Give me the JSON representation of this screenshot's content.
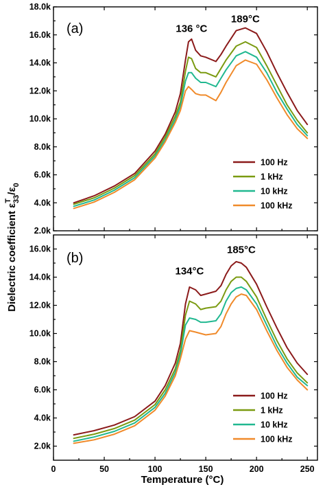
{
  "figure": {
    "ylabel_main": "Dielectric coefficient ε",
    "ylabel_sup": "T",
    "ylabel_sub": "33",
    "ylabel_tail": "/ε",
    "ylabel_sub0": "0",
    "xlabel": "Temperature (°C)"
  },
  "colors": {
    "100 Hz": "#8b1a1a",
    "1 kHz": "#7a9a10",
    "10 kHz": "#20b890",
    "100 kHz": "#f08a2a"
  },
  "chart_data": [
    {
      "type": "line",
      "panel_label": "(a)",
      "xlabel": "",
      "ylabel": "Dielectric coefficient ε33T/ε0",
      "xlim": [
        0,
        260
      ],
      "ylim": [
        2000,
        18000
      ],
      "xticks": [
        0,
        50,
        100,
        150,
        200,
        250
      ],
      "xtick_labels": [
        "0",
        "50",
        "100",
        "150",
        "200",
        "250"
      ],
      "yticks": [
        2000,
        4000,
        6000,
        8000,
        10000,
        12000,
        14000,
        16000,
        18000
      ],
      "ytick_labels": [
        "2.0k",
        "4.0k",
        "6.0k",
        "8.0k",
        "10.0k",
        "12.0k",
        "14.0k",
        "16.0k",
        "18.0k"
      ],
      "annotations": [
        {
          "text": "136 °C",
          "x": 136,
          "y": 16200
        },
        {
          "text": "189°C",
          "x": 189,
          "y": 16900
        }
      ],
      "legend": [
        "100 Hz",
        "1 kHz",
        "10 kHz",
        "100 kHz"
      ],
      "legend_position": "center-right",
      "x": [
        20,
        40,
        60,
        80,
        100,
        110,
        120,
        125,
        130,
        133,
        136,
        140,
        145,
        150,
        160,
        165,
        170,
        180,
        189,
        200,
        210,
        220,
        230,
        240,
        250
      ],
      "series": [
        {
          "name": "100 Hz",
          "values": [
            4000,
            4500,
            5200,
            6100,
            7700,
            8900,
            10500,
            11800,
            14200,
            15500,
            15700,
            14900,
            14500,
            14400,
            14100,
            14600,
            15200,
            16300,
            16500,
            16100,
            14800,
            13300,
            11900,
            10600,
            9600
          ]
        },
        {
          "name": "1 kHz",
          "values": [
            3900,
            4350,
            5050,
            5950,
            7500,
            8700,
            10200,
            11200,
            13400,
            14400,
            14300,
            13600,
            13300,
            13300,
            13000,
            13600,
            14200,
            15200,
            15500,
            15100,
            13800,
            12400,
            11000,
            9900,
            9000
          ]
        },
        {
          "name": "10 kHz",
          "values": [
            3750,
            4200,
            4900,
            5800,
            7350,
            8500,
            9950,
            10900,
            12700,
            13300,
            13300,
            12900,
            12600,
            12600,
            12300,
            12900,
            13500,
            14500,
            14800,
            14400,
            13300,
            11900,
            10700,
            9600,
            8800
          ]
        },
        {
          "name": "100 kHz",
          "values": [
            3600,
            4050,
            4750,
            5650,
            7200,
            8350,
            9750,
            10600,
            12000,
            12300,
            12100,
            11800,
            11700,
            11700,
            11300,
            11900,
            12600,
            13800,
            14200,
            13900,
            12800,
            11500,
            10300,
            9300,
            8600
          ]
        }
      ]
    },
    {
      "type": "line",
      "panel_label": "(b)",
      "xlabel": "Temperature (°C)",
      "ylabel": "Dielectric coefficient ε33T/ε0",
      "xlim": [
        0,
        260
      ],
      "ylim": [
        1000,
        17000
      ],
      "xticks": [
        0,
        50,
        100,
        150,
        200,
        250
      ],
      "xtick_labels": [
        "0",
        "50",
        "100",
        "150",
        "200",
        "250"
      ],
      "yticks": [
        2000,
        4000,
        6000,
        8000,
        10000,
        12000,
        14000,
        16000
      ],
      "ytick_labels": [
        "2.0k",
        "4.0k",
        "6.0k",
        "8.0k",
        "10.0k",
        "12.0k",
        "14.0k",
        "16.0k"
      ],
      "annotations": [
        {
          "text": "134°C",
          "x": 134,
          "y": 14200
        },
        {
          "text": "185°C",
          "x": 185,
          "y": 15700
        }
      ],
      "legend": [
        "100 Hz",
        "1 kHz",
        "10 kHz",
        "100 kHz"
      ],
      "legend_position": "lower-right",
      "x": [
        20,
        40,
        60,
        80,
        100,
        110,
        120,
        125,
        130,
        134,
        140,
        145,
        150,
        160,
        165,
        170,
        175,
        180,
        185,
        190,
        200,
        210,
        220,
        230,
        240,
        250
      ],
      "series": [
        {
          "name": "100 Hz",
          "values": [
            2800,
            3100,
            3500,
            4100,
            5200,
            6300,
            7900,
            9300,
            12100,
            13300,
            13100,
            12700,
            12800,
            13000,
            13400,
            14200,
            14800,
            15100,
            15000,
            14700,
            13500,
            11900,
            10400,
            9000,
            7900,
            7100
          ]
        },
        {
          "name": "1 kHz",
          "values": [
            2550,
            2850,
            3250,
            3850,
            4950,
            6000,
            7500,
            8800,
            11300,
            12300,
            12100,
            11700,
            11800,
            11900,
            12300,
            13100,
            13700,
            14000,
            14000,
            13700,
            12600,
            11000,
            9500,
            8200,
            7200,
            6500
          ]
        },
        {
          "name": "10 kHz",
          "values": [
            2350,
            2650,
            3050,
            3650,
            4750,
            5750,
            7250,
            8500,
            10600,
            11100,
            11000,
            10800,
            10800,
            10900,
            11400,
            12300,
            12900,
            13200,
            13300,
            13100,
            12100,
            10600,
            9100,
            7900,
            6900,
            6300
          ]
        },
        {
          "name": "100 kHz",
          "values": [
            2200,
            2450,
            2850,
            3450,
            4550,
            5550,
            7000,
            8200,
            9600,
            10200,
            10100,
            10000,
            9900,
            10000,
            10500,
            11400,
            12100,
            12600,
            12800,
            12700,
            11700,
            10200,
            8800,
            7600,
            6700,
            6000
          ]
        }
      ]
    }
  ]
}
